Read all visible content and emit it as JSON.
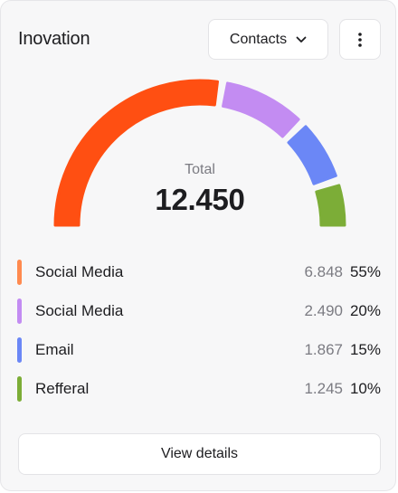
{
  "card": {
    "title": "Inovation",
    "filter_label": "Contacts",
    "more_icon": "more-vertical-icon",
    "dropdown_icon": "chevron-down-icon"
  },
  "gauge": {
    "total_label": "Total",
    "total_value": "12.450"
  },
  "chart_data": {
    "type": "pie",
    "categories": [
      "Social Media",
      "Social Media",
      "Email",
      "Refferal"
    ],
    "values": [
      55,
      20,
      15,
      10
    ],
    "colors": [
      "#ff4f12",
      "#c38cf2",
      "#6b87f6",
      "#7cad37"
    ]
  },
  "legend": [
    {
      "label": "Social Media",
      "value": "6.848",
      "percent": "55%",
      "color": "#ff8a4f"
    },
    {
      "label": "Social Media",
      "value": "2.490",
      "percent": "20%",
      "color": "#c38cf2"
    },
    {
      "label": "Email",
      "value": "1.867",
      "percent": "15%",
      "color": "#6b87f6"
    },
    {
      "label": "Refferal",
      "value": "1.245",
      "percent": "10%",
      "color": "#7cad37"
    }
  ],
  "footer": {
    "details_label": "View details"
  }
}
